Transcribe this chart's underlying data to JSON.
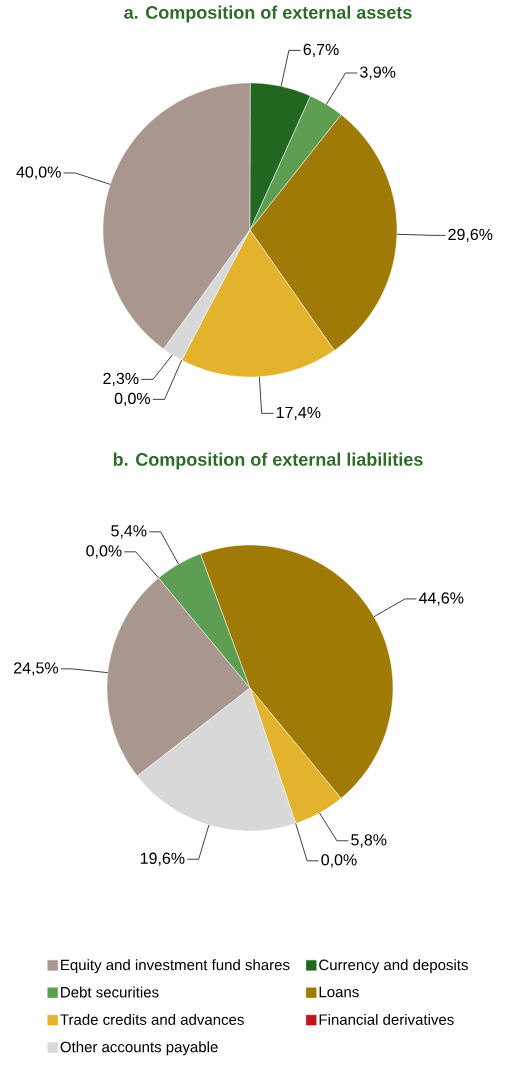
{
  "chart_data": [
    {
      "type": "pie",
      "title": "a. Composition of external assets",
      "categories": [
        null,
        null,
        null,
        null,
        null,
        null,
        null
      ],
      "values": [
        40.0,
        6.7,
        3.9,
        29.6,
        17.4,
        0.0,
        2.3
      ],
      "colors": [
        "#a8968f",
        "#22671f",
        "#5e9e52",
        "#a07a06",
        "#e3b32d",
        "#c0141c",
        "#d8d8d8"
      ],
      "value_labels": [
        "40,0%",
        "6,7%",
        "3,9%",
        "29,6%",
        "17,4%",
        "0,0%",
        "2,3%"
      ]
    },
    {
      "type": "pie",
      "title": "b. Composition of external liabilities",
      "categories": [
        "Equity and investment fund shares",
        "Currency and deposits",
        "Debt securities",
        "Loans",
        "Trade credits and advances",
        "Financial derivatives",
        "Other accounts payable"
      ],
      "values": [
        24.5,
        0.0,
        5.4,
        44.6,
        5.8,
        0.0,
        19.6
      ],
      "colors": [
        "#a8968f",
        "#22671f",
        "#5e9e52",
        "#a07a06",
        "#e3b32d",
        "#c0141c",
        "#d8d8d8"
      ],
      "value_labels": [
        "24,5%",
        "0,0%",
        "5,4%",
        "44,6%",
        "5,8%",
        "0,0%",
        "19,6%"
      ],
      "legend": "bottom"
    }
  ]
}
